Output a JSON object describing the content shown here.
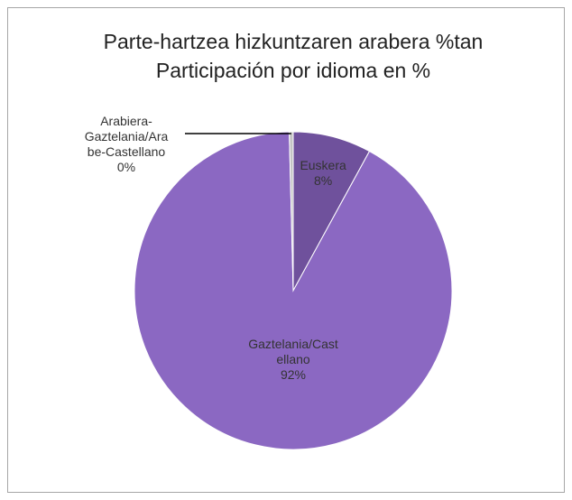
{
  "chart_data": {
    "type": "pie",
    "title": [
      "Parte-hartzea hizkuntzaren arabera %tan",
      "Participación por idioma en %"
    ],
    "categories": [
      "Euskera",
      "Gaztelania/Castellano",
      "Arabiera-Gaztelania/Arabe-Castellano"
    ],
    "values": [
      8,
      92,
      0.4
    ],
    "value_labels": [
      "8%",
      "92%",
      "0%"
    ],
    "colors": [
      "#6f519c",
      "#8b68c2",
      "#c4c4c4"
    ]
  }
}
